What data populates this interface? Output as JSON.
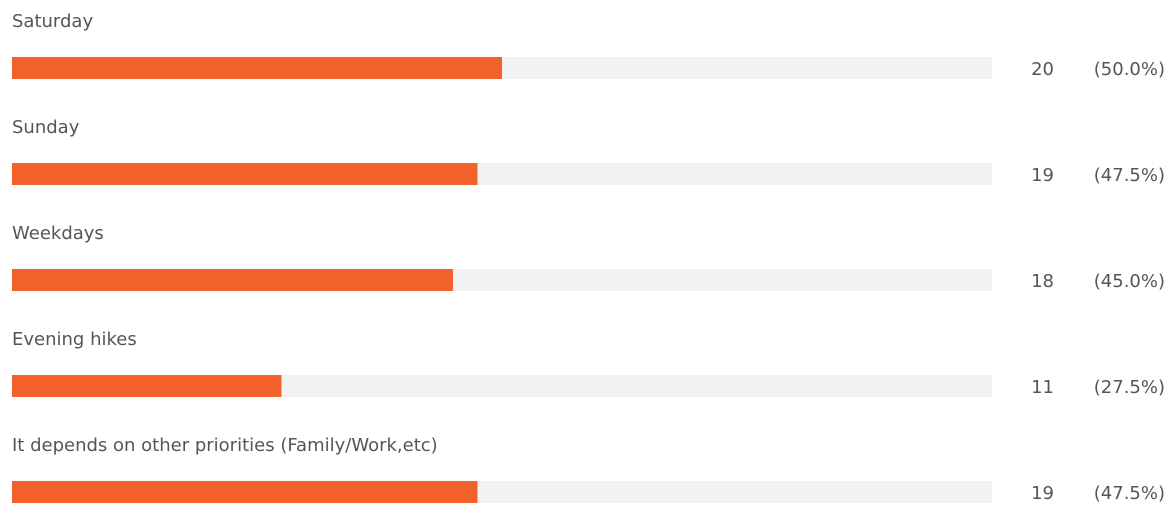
{
  "chart_data": {
    "type": "hbar",
    "categories": [
      "Saturday",
      "Sunday",
      "Weekdays",
      "Evening hikes",
      "It depends on other priorities (Family/Work,etc)"
    ],
    "counts": [
      20,
      19,
      18,
      11,
      19
    ],
    "values": [
      50.0,
      47.5,
      45.0,
      27.5,
      47.5
    ],
    "value_labels": [
      "(50.0%)",
      "(47.5%)",
      "(45.0%)",
      "(27.5%)",
      "(47.5%)"
    ],
    "xlim": [
      0,
      100
    ],
    "color": "#f26129",
    "track_color": "#f2f2f2"
  }
}
